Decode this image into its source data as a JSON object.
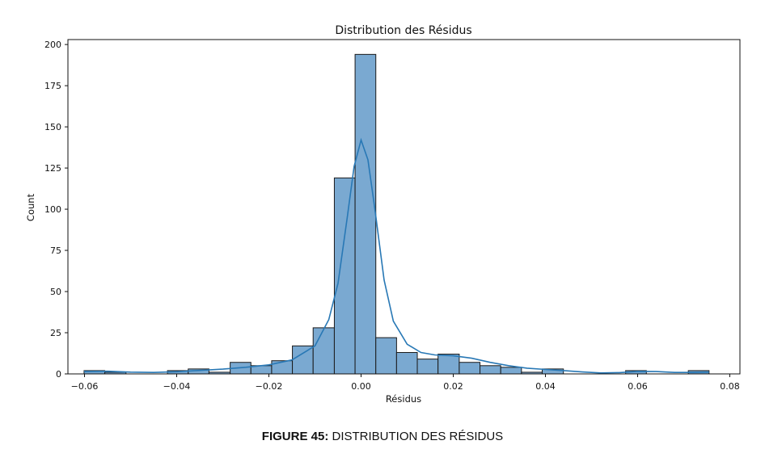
{
  "chart_data": {
    "type": "bar",
    "title": "Distribution des Résidus",
    "xlabel": "Résidus",
    "ylabel": "Count",
    "xlim": [
      -0.0636,
      0.0822
    ],
    "ylim": [
      0,
      203
    ],
    "xticks": [
      -0.06,
      -0.04,
      -0.02,
      0.0,
      0.02,
      0.04,
      0.06,
      0.08
    ],
    "xtick_labels": [
      "−0.06",
      "−0.04",
      "−0.02",
      "0.00",
      "0.02",
      "0.04",
      "0.06",
      "0.08"
    ],
    "yticks": [
      0,
      25,
      50,
      75,
      100,
      125,
      150,
      175,
      200
    ],
    "ytick_labels": [
      "0",
      "25",
      "50",
      "75",
      "100",
      "125",
      "150",
      "175",
      "200"
    ],
    "bin_edges": [
      -0.0601,
      -0.0556,
      -0.051,
      -0.0465,
      -0.042,
      -0.0375,
      -0.033,
      -0.0284,
      -0.0239,
      -0.0194,
      -0.0149,
      -0.0104,
      -0.0058,
      -0.0013,
      0.0032,
      0.0077,
      0.0122,
      0.0167,
      0.0213,
      0.0258,
      0.0303,
      0.0348,
      0.0393,
      0.0439,
      0.0484,
      0.0529,
      0.0574,
      0.0619,
      0.0665,
      0.071,
      0.0755
    ],
    "counts": [
      2,
      1,
      0,
      0,
      2,
      3,
      1,
      7,
      5,
      8,
      17,
      28,
      119,
      194,
      22,
      13,
      9,
      12,
      7,
      5,
      4,
      1,
      3,
      0,
      0,
      0,
      2,
      0,
      0,
      2
    ],
    "kde": [
      [
        -0.0601,
        1.4
      ],
      [
        -0.055,
        1.6
      ],
      [
        -0.05,
        1.1
      ],
      [
        -0.045,
        0.9
      ],
      [
        -0.04,
        1.3
      ],
      [
        -0.035,
        2.1
      ],
      [
        -0.03,
        2.9
      ],
      [
        -0.025,
        4.0
      ],
      [
        -0.02,
        5.5
      ],
      [
        -0.015,
        8.5
      ],
      [
        -0.01,
        17
      ],
      [
        -0.007,
        33
      ],
      [
        -0.005,
        55
      ],
      [
        -0.003,
        95
      ],
      [
        -0.0015,
        126
      ],
      [
        0.0,
        142
      ],
      [
        0.0015,
        130
      ],
      [
        0.003,
        100
      ],
      [
        0.005,
        57
      ],
      [
        0.007,
        32
      ],
      [
        0.01,
        18
      ],
      [
        0.013,
        13
      ],
      [
        0.016,
        11.5
      ],
      [
        0.02,
        11
      ],
      [
        0.024,
        9.5
      ],
      [
        0.028,
        7
      ],
      [
        0.032,
        5
      ],
      [
        0.036,
        3.5
      ],
      [
        0.04,
        2.7
      ],
      [
        0.044,
        2.0
      ],
      [
        0.048,
        1.2
      ],
      [
        0.052,
        0.6
      ],
      [
        0.056,
        0.8
      ],
      [
        0.06,
        1.5
      ],
      [
        0.064,
        1.4
      ],
      [
        0.068,
        0.9
      ],
      [
        0.072,
        0.9
      ],
      [
        0.0755,
        1.1
      ]
    ],
    "bar_color": "#7aa9d1",
    "bar_edge_color": "#1a1a1a",
    "kde_color": "#2878b5",
    "grid": false,
    "legend": "none"
  },
  "caption": {
    "label": "FIGURE 45:",
    "text": "DISTRIBUTION DES RÉSIDUS"
  }
}
